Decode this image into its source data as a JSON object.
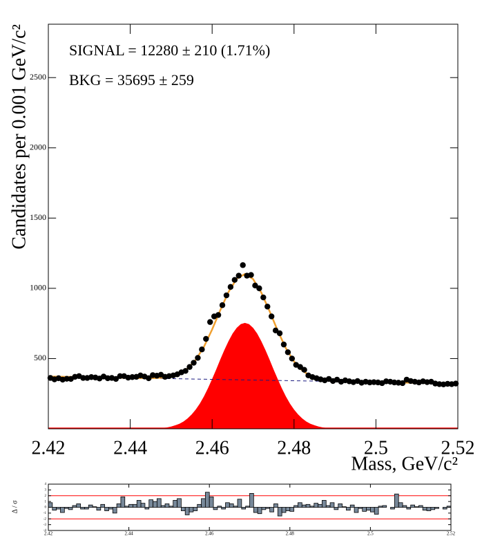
{
  "chart_data": [
    {
      "type": "scatter",
      "annotations": [
        "SIGNAL = 12280 ± 210 (1.71%)",
        "BKG = 35695 ± 259"
      ],
      "xlabel": "Mass, GeV/c²",
      "ylabel": "Candidates per 0.001 GeV/c²",
      "xlim": [
        2.42,
        2.52
      ],
      "xticks": [
        2.42,
        2.44,
        2.46,
        2.48,
        2.5,
        2.52
      ],
      "ylim": [
        0,
        2880
      ],
      "yticks": [
        500,
        1000,
        1500,
        2000,
        2500
      ],
      "series": [
        {
          "color": "#ff0000",
          "style": "fill",
          "x": [
            2.444,
            2.445,
            2.446,
            2.447,
            2.448,
            2.449,
            2.45,
            2.451,
            2.452,
            2.453,
            2.454,
            2.455,
            2.456,
            2.457,
            2.458,
            2.459,
            2.46,
            2.461,
            2.462,
            2.463,
            2.464,
            2.465,
            2.466,
            2.467,
            2.468,
            2.469,
            2.47,
            2.471,
            2.472,
            2.473,
            2.474,
            2.475,
            2.476,
            2.477,
            2.478,
            2.479,
            2.48,
            2.481,
            2.482,
            2.483,
            2.484,
            2.485,
            2.486,
            2.487,
            2.488,
            2.489,
            2.49,
            2.491,
            2.492
          ],
          "values": [
            1,
            1,
            2,
            4,
            6,
            10,
            16,
            25,
            36,
            52,
            74,
            102,
            137,
            180,
            231,
            290,
            355,
            423,
            494,
            562,
            624,
            678,
            719,
            745,
            754,
            745,
            719,
            678,
            624,
            562,
            494,
            423,
            355,
            290,
            231,
            180,
            137,
            102,
            74,
            52,
            36,
            25,
            16,
            10,
            6,
            4,
            2,
            1,
            1
          ]
        },
        {
          "color": "#1a1a80",
          "style": "dashed",
          "x": [
            2.42,
            2.52
          ],
          "values": [
            372,
            322
          ]
        },
        {
          "color": "#f0a030",
          "style": "line",
          "x": [
            2.42,
            2.422,
            2.424,
            2.426,
            2.428,
            2.43,
            2.432,
            2.434,
            2.436,
            2.438,
            2.44,
            2.442,
            2.444,
            2.446,
            2.448,
            2.45,
            2.452,
            2.454,
            2.456,
            2.458,
            2.46,
            2.462,
            2.464,
            2.466,
            2.468,
            2.47,
            2.472,
            2.474,
            2.476,
            2.478,
            2.48,
            2.482,
            2.484,
            2.486,
            2.488,
            2.49,
            2.492,
            2.494,
            2.496,
            2.498,
            2.5,
            2.502,
            2.504,
            2.506,
            2.508,
            2.51,
            2.512,
            2.514,
            2.516,
            2.518,
            2.52
          ],
          "values": [
            372,
            371,
            370,
            369,
            368,
            367,
            366,
            365,
            364,
            363,
            362,
            361,
            361,
            361,
            364,
            373,
            392,
            429,
            491,
            584,
            707,
            845,
            974,
            1068,
            1102,
            1066,
            970,
            839,
            699,
            574,
            479,
            415,
            376,
            355,
            344,
            339,
            337,
            335,
            334,
            333,
            332,
            331,
            330,
            329,
            328,
            327,
            326,
            325,
            324,
            323,
            322
          ]
        },
        {
          "color": "#000000",
          "style": "points",
          "x": [
            2.4205,
            2.4215,
            2.4225,
            2.4235,
            2.4245,
            2.4255,
            2.4265,
            2.4275,
            2.4285,
            2.4295,
            2.4305,
            2.4315,
            2.4325,
            2.4335,
            2.4345,
            2.4355,
            2.4365,
            2.4375,
            2.4385,
            2.4395,
            2.4405,
            2.4415,
            2.4425,
            2.4435,
            2.4445,
            2.4455,
            2.4465,
            2.4475,
            2.4485,
            2.4495,
            2.4505,
            2.4515,
            2.4525,
            2.4535,
            2.4545,
            2.4555,
            2.4565,
            2.4575,
            2.4585,
            2.4595,
            2.4605,
            2.4615,
            2.4625,
            2.4635,
            2.4645,
            2.4655,
            2.4665,
            2.4675,
            2.4685,
            2.4695,
            2.4705,
            2.4715,
            2.4725,
            2.4735,
            2.4745,
            2.4755,
            2.4765,
            2.4775,
            2.4785,
            2.4795,
            2.4805,
            2.4815,
            2.4825,
            2.4835,
            2.4845,
            2.4855,
            2.4865,
            2.4875,
            2.4885,
            2.4895,
            2.4905,
            2.4915,
            2.4925,
            2.4935,
            2.4945,
            2.4955,
            2.4965,
            2.4975,
            2.4985,
            2.4995,
            2.5005,
            2.5015,
            2.5025,
            2.5035,
            2.5045,
            2.5055,
            2.5065,
            2.5075,
            2.5085,
            2.5095,
            2.5105,
            2.5115,
            2.5125,
            2.5135,
            2.5145,
            2.5155,
            2.5165,
            2.5175,
            2.5185,
            2.5195
          ],
          "values": [
            362,
            352,
            360,
            350,
            356,
            355,
            370,
            375,
            362,
            362,
            368,
            365,
            358,
            372,
            360,
            362,
            355,
            375,
            375,
            364,
            368,
            370,
            380,
            372,
            360,
            382,
            378,
            385,
            370,
            375,
            380,
            388,
            402,
            412,
            440,
            470,
            505,
            565,
            640,
            760,
            800,
            810,
            880,
            950,
            1010,
            1060,
            1090,
            1165,
            1090,
            1095,
            1020,
            1000,
            935,
            870,
            800,
            700,
            680,
            600,
            545,
            500,
            455,
            440,
            420,
            380,
            368,
            360,
            352,
            345,
            355,
            340,
            350,
            335,
            345,
            338,
            332,
            340,
            328,
            335,
            330,
            332,
            330,
            325,
            338,
            335,
            330,
            328,
            325,
            350,
            340,
            335,
            330,
            338,
            332,
            335,
            322,
            318,
            316,
            320,
            318,
            322
          ]
        }
      ]
    },
    {
      "type": "histogram",
      "ylabel": "Δ / σ",
      "xlim": [
        2.42,
        2.52
      ],
      "xticks": [
        2.42,
        2.44,
        2.46,
        2.48,
        2.5,
        2.52
      ],
      "ylim": [
        -4,
        4
      ],
      "yticks": [
        -4,
        -3,
        -2,
        -1,
        0,
        1,
        2,
        3,
        4
      ],
      "reference_lines": [
        -2,
        2
      ],
      "reference_color": "#ff0000",
      "color": "#778899",
      "bins": [
        2.42,
        2.421,
        2.422,
        2.423,
        2.424,
        2.425,
        2.426,
        2.427,
        2.428,
        2.429,
        2.43,
        2.431,
        2.432,
        2.433,
        2.434,
        2.435,
        2.436,
        2.437,
        2.438,
        2.439,
        2.44,
        2.441,
        2.442,
        2.443,
        2.444,
        2.445,
        2.446,
        2.447,
        2.448,
        2.449,
        2.45,
        2.451,
        2.452,
        2.453,
        2.454,
        2.455,
        2.456,
        2.457,
        2.458,
        2.459,
        2.46,
        2.461,
        2.462,
        2.463,
        2.464,
        2.465,
        2.466,
        2.467,
        2.468,
        2.469,
        2.47,
        2.471,
        2.472,
        2.473,
        2.474,
        2.475,
        2.476,
        2.477,
        2.478,
        2.479,
        2.48,
        2.481,
        2.482,
        2.483,
        2.484,
        2.485,
        2.486,
        2.487,
        2.488,
        2.489,
        2.49,
        2.491,
        2.492,
        2.493,
        2.494,
        2.495,
        2.496,
        2.497,
        2.498,
        2.499,
        2.5,
        2.501,
        2.502,
        2.503,
        2.504,
        2.505,
        2.506,
        2.507,
        2.508,
        2.509,
        2.51,
        2.511,
        2.512,
        2.513,
        2.514,
        2.515,
        2.516,
        2.517,
        2.518,
        2.519,
        2.52
      ],
      "values": [
        0.8,
        -0.5,
        -0.3,
        -0.9,
        -0.2,
        -0.4,
        0.3,
        0.6,
        -0.3,
        -0.3,
        0.4,
        0.1,
        -0.5,
        0.5,
        -0.6,
        -0.3,
        -1.0,
        0.6,
        1.8,
        0.2,
        0.5,
        0.5,
        1.2,
        0.7,
        -0.3,
        1.3,
        1.0,
        1.5,
        0.3,
        0.6,
        0.2,
        1.2,
        1.5,
        -0.6,
        -1.3,
        -0.8,
        -0.6,
        0.5,
        1.5,
        2.6,
        1.8,
        -0.4,
        0.2,
        -0.3,
        0.8,
        0.6,
        0.2,
        1.4,
        -0.3,
        0.2,
        2.4,
        -0.9,
        -1.1,
        -0.4,
        -0.2,
        -0.8,
        0.6,
        -1.5,
        -0.9,
        -0.6,
        -0.7,
        0.3,
        0.8,
        0.4,
        0.5,
        0.2,
        0.7,
        0.5,
        1.2,
        0.3,
        0.8,
        -0.4,
        0.6,
        0.1,
        -0.5,
        0.4,
        -0.9,
        -0.2,
        -0.7,
        -0.5,
        -0.8,
        -1.2,
        0.2,
        0.3,
        0.0,
        -0.3,
        2.3,
        0.8,
        0.3,
        -0.3,
        0.4,
        0.1,
        0.3,
        -0.5,
        -0.6,
        -0.4,
        -0.2,
        0.0,
        -0.3,
        0.2
      ]
    }
  ]
}
